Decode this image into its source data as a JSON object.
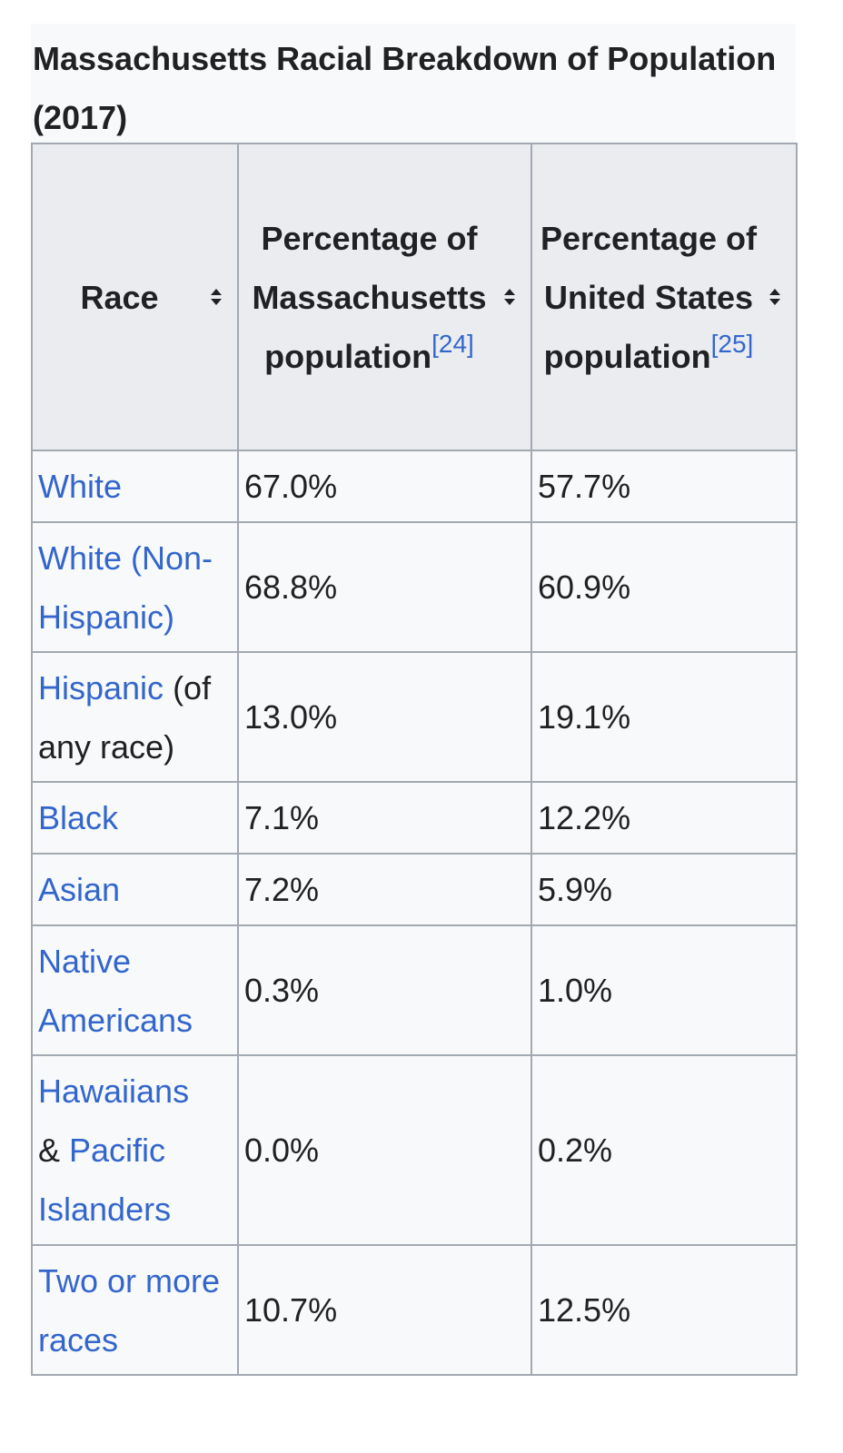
{
  "table": {
    "caption": "Massachusetts Racial Breakdown of Population (2017)",
    "headers": {
      "race": "Race",
      "ma_label": "Percentage of Massachusetts population",
      "ma_ref": "[24]",
      "us_label": "Percentage of United States population",
      "us_ref": "[25]"
    },
    "rows": [
      {
        "race_link": "White",
        "race_suffix": "",
        "ma": "67.0%",
        "us": "57.7%"
      },
      {
        "race_link": "White (Non-Hispanic)",
        "race_suffix": "",
        "ma": "68.8%",
        "us": "60.9%"
      },
      {
        "race_link": "Hispanic",
        "race_suffix": " (of any race)",
        "ma": "13.0%",
        "us": "19.1%"
      },
      {
        "race_link": "Black",
        "race_suffix": "",
        "ma": "7.1%",
        "us": "12.2%"
      },
      {
        "race_link": "Asian",
        "race_suffix": "",
        "ma": "7.2%",
        "us": "5.9%"
      },
      {
        "race_link": "Native Americans",
        "race_suffix": "",
        "ma": "0.3%",
        "us": "1.0%"
      },
      {
        "race_link_1": "Hawaiians",
        "race_mid": " & ",
        "race_link_2": "Pacific Islanders",
        "ma": "0.0%",
        "us": "0.2%"
      },
      {
        "race_link": "Two or more races",
        "race_suffix": "",
        "ma": "10.7%",
        "us": "12.5%"
      }
    ],
    "colors": {
      "link": "#3366cc",
      "header_bg": "#eaecf0",
      "cell_bg": "#f8f9fa",
      "border": "#a2a9b1",
      "text": "#202122"
    },
    "sort_icon": "sort-toggle-icon"
  }
}
